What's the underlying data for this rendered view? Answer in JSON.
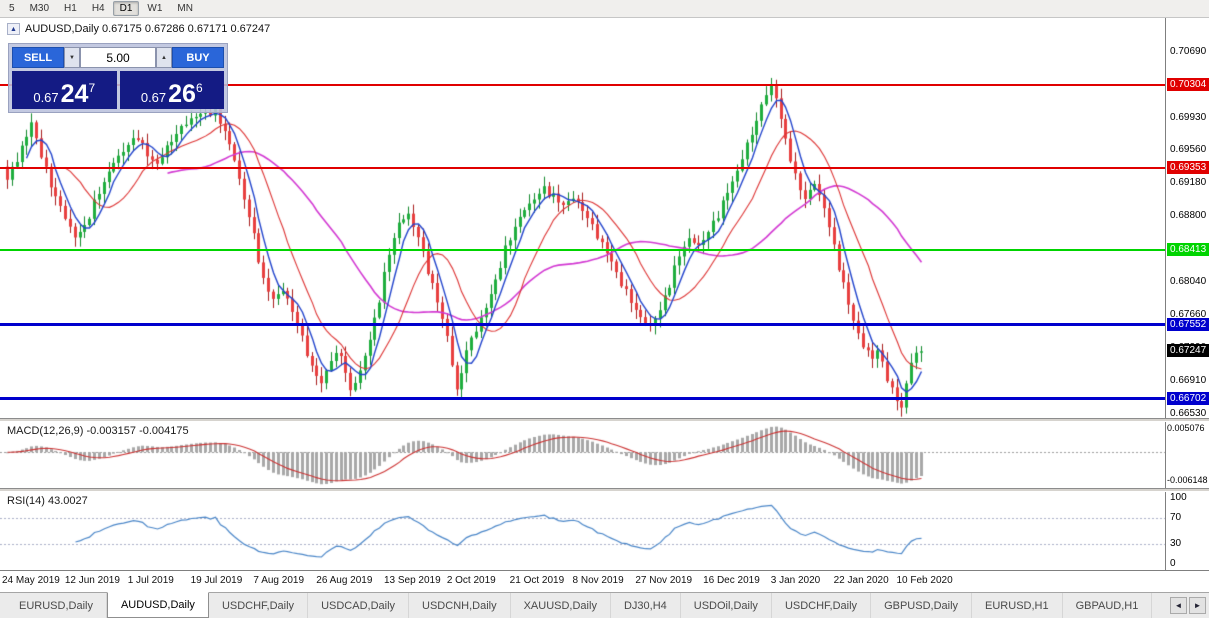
{
  "colors": {
    "up_fill": "#1fae3e",
    "up_wick": "#128a2c",
    "down_fill": "#e83f3f",
    "down_wick": "#a81d1d",
    "ma_fast": "#2244cc",
    "ma_mid": "#dd3333",
    "ma_slow": "#d238d2",
    "macd_hist": "#a8a8a8",
    "macd_signal": "#cc3333",
    "rsi_line": "#4a86c8"
  },
  "toolbar": {
    "buttons": [
      {
        "label": "5",
        "active": false
      },
      {
        "label": "M30",
        "active": false
      },
      {
        "label": "H1",
        "active": false
      },
      {
        "label": "H4",
        "active": false
      },
      {
        "label": "D1",
        "active": true
      },
      {
        "label": "W1",
        "active": false
      },
      {
        "label": "MN",
        "active": false
      }
    ]
  },
  "chart_header": {
    "collapse_icon": "▲",
    "title": "AUDUSD,Daily 0.67175 0.67286 0.67171 0.67247"
  },
  "trade_panel": {
    "sell_label": "SELL",
    "buy_label": "BUY",
    "volume": "5.00",
    "spinner_down": "▼",
    "spinner_up": "▲",
    "sell_quote": {
      "base": "0.67",
      "big": "24",
      "sup": "7"
    },
    "buy_quote": {
      "base": "0.67",
      "big": "26",
      "sup": "6"
    }
  },
  "price_axis": {
    "ticks": [
      "0.70690",
      "0.70310",
      "0.69930",
      "0.69560",
      "0.69180",
      "0.68800",
      "0.68410",
      "0.68040",
      "0.67660",
      "0.67290",
      "0.66910",
      "0.66530"
    ]
  },
  "levels": [
    {
      "price": 0.70304,
      "label": "0.70304",
      "color": "#e00000",
      "width": 2
    },
    {
      "price": 0.69353,
      "label": "0.69353",
      "color": "#e00000",
      "width": 2
    },
    {
      "price": 0.68413,
      "label": "0.68413",
      "color": "#00d400",
      "width": 2
    },
    {
      "price": 0.67552,
      "label": "0.67552",
      "color": "#0000cd",
      "width": 3
    },
    {
      "price": 0.66702,
      "label": "0.66702",
      "color": "#0000cd",
      "width": 3
    }
  ],
  "current_price": {
    "label": "0.67247",
    "value": 0.67247,
    "badge_bg": "#000000"
  },
  "chart_data": {
    "type": "candlestick",
    "symbol": "AUDUSD",
    "timeframe": "Daily",
    "ohlc_header": {
      "open": "0.67175",
      "high": "0.67286",
      "low": "0.67171",
      "close": "0.67247"
    },
    "price_min": 0.6648,
    "price_max": 0.7108,
    "candle_count": 190,
    "last_close": 0.67247,
    "wick": 0.0011,
    "zigzag": 0.0006,
    "ma_periods": {
      "fast": 5,
      "mid": 13,
      "slow": 34
    },
    "path": [
      [
        0,
        0.6922
      ],
      [
        2,
        0.6946
      ],
      [
        4,
        0.6972
      ],
      [
        5,
        0.6988
      ],
      [
        7,
        0.695
      ],
      [
        9,
        0.6916
      ],
      [
        11,
        0.689
      ],
      [
        14,
        0.6856
      ],
      [
        16,
        0.6868
      ],
      [
        19,
        0.6908
      ],
      [
        22,
        0.6942
      ],
      [
        25,
        0.6962
      ],
      [
        27,
        0.6972
      ],
      [
        29,
        0.695
      ],
      [
        31,
        0.694
      ],
      [
        34,
        0.6968
      ],
      [
        37,
        0.6988
      ],
      [
        40,
        0.6998
      ],
      [
        43,
        0.7
      ],
      [
        45,
        0.6978
      ],
      [
        47,
        0.6945
      ],
      [
        49,
        0.69
      ],
      [
        51,
        0.6858
      ],
      [
        53,
        0.6805
      ],
      [
        55,
        0.6785
      ],
      [
        57,
        0.6795
      ],
      [
        59,
        0.6772
      ],
      [
        61,
        0.674
      ],
      [
        63,
        0.6706
      ],
      [
        65,
        0.6688
      ],
      [
        67,
        0.6716
      ],
      [
        69,
        0.6722
      ],
      [
        71,
        0.6678
      ],
      [
        73,
        0.6702
      ],
      [
        75,
        0.6738
      ],
      [
        77,
        0.6785
      ],
      [
        79,
        0.6838
      ],
      [
        81,
        0.6872
      ],
      [
        83,
        0.6882
      ],
      [
        85,
        0.6856
      ],
      [
        87,
        0.6818
      ],
      [
        89,
        0.6782
      ],
      [
        91,
        0.6742
      ],
      [
        93,
        0.6678
      ],
      [
        95,
        0.6726
      ],
      [
        97,
        0.675
      ],
      [
        99,
        0.6775
      ],
      [
        101,
        0.6806
      ],
      [
        103,
        0.6842
      ],
      [
        105,
        0.6868
      ],
      [
        107,
        0.6888
      ],
      [
        109,
        0.69
      ],
      [
        111,
        0.6912
      ],
      [
        113,
        0.6902
      ],
      [
        115,
        0.6893
      ],
      [
        117,
        0.6901
      ],
      [
        119,
        0.6888
      ],
      [
        121,
        0.6868
      ],
      [
        123,
        0.6848
      ],
      [
        125,
        0.6828
      ],
      [
        127,
        0.6802
      ],
      [
        129,
        0.6783
      ],
      [
        131,
        0.6762
      ],
      [
        133,
        0.6754
      ],
      [
        135,
        0.6772
      ],
      [
        137,
        0.6802
      ],
      [
        139,
        0.6836
      ],
      [
        141,
        0.6854
      ],
      [
        143,
        0.6846
      ],
      [
        145,
        0.6862
      ],
      [
        147,
        0.6882
      ],
      [
        149,
        0.6908
      ],
      [
        151,
        0.6932
      ],
      [
        153,
        0.6962
      ],
      [
        155,
        0.699
      ],
      [
        157,
        0.7022
      ],
      [
        158,
        0.703
      ],
      [
        159,
        0.7016
      ],
      [
        161,
        0.6968
      ],
      [
        163,
        0.6925
      ],
      [
        165,
        0.69
      ],
      [
        167,
        0.6918
      ],
      [
        169,
        0.689
      ],
      [
        171,
        0.6845
      ],
      [
        173,
        0.68
      ],
      [
        175,
        0.676
      ],
      [
        177,
        0.673
      ],
      [
        179,
        0.6718
      ],
      [
        180,
        0.6726
      ],
      [
        182,
        0.6694
      ],
      [
        184,
        0.6668
      ],
      [
        185,
        0.666
      ],
      [
        187,
        0.6714
      ],
      [
        189,
        0.67247
      ]
    ]
  },
  "macd_panel": {
    "label": "MACD(12,26,9) -0.003157 -0.004175",
    "value": "-0.003157",
    "signal": "-0.004175",
    "axis_max": "0.005076",
    "axis_min": "-0.006148",
    "vmax": 0.005076,
    "vmin": -0.006148
  },
  "rsi_panel": {
    "label": "RSI(14) 43.0027",
    "value": "43.0027",
    "axis": [
      "100",
      "70",
      "30",
      "0"
    ],
    "levels": [
      70,
      30
    ]
  },
  "date_axis": {
    "labels": [
      "24 May 2019",
      "12 Jun 2019",
      "1 Jul 2019",
      "19 Jul 2019",
      "7 Aug 2019",
      "26 Aug 2019",
      "13 Sep 2019",
      "2 Oct 2019",
      "21 Oct 2019",
      "8 Nov 2019",
      "27 Nov 2019",
      "16 Dec 2019",
      "3 Jan 2020",
      "22 Jan 2020",
      "10 Feb 2020"
    ],
    "indices": [
      0,
      13,
      26,
      39,
      52,
      65,
      79,
      92,
      105,
      118,
      131,
      145,
      159,
      172,
      185
    ]
  },
  "tabs": {
    "items": [
      "EURUSD,Daily",
      "AUDUSD,Daily",
      "USDCHF,Daily",
      "USDCAD,Daily",
      "USDCNH,Daily",
      "XAUUSD,Daily",
      "DJ30,H4",
      "USDOil,Daily",
      "USDCHF,Daily",
      "GBPUSD,Daily",
      "EURUSD,H1",
      "GBPAUD,H1"
    ],
    "active_index": 1,
    "scroll_left": "◄",
    "scroll_right": "►"
  }
}
